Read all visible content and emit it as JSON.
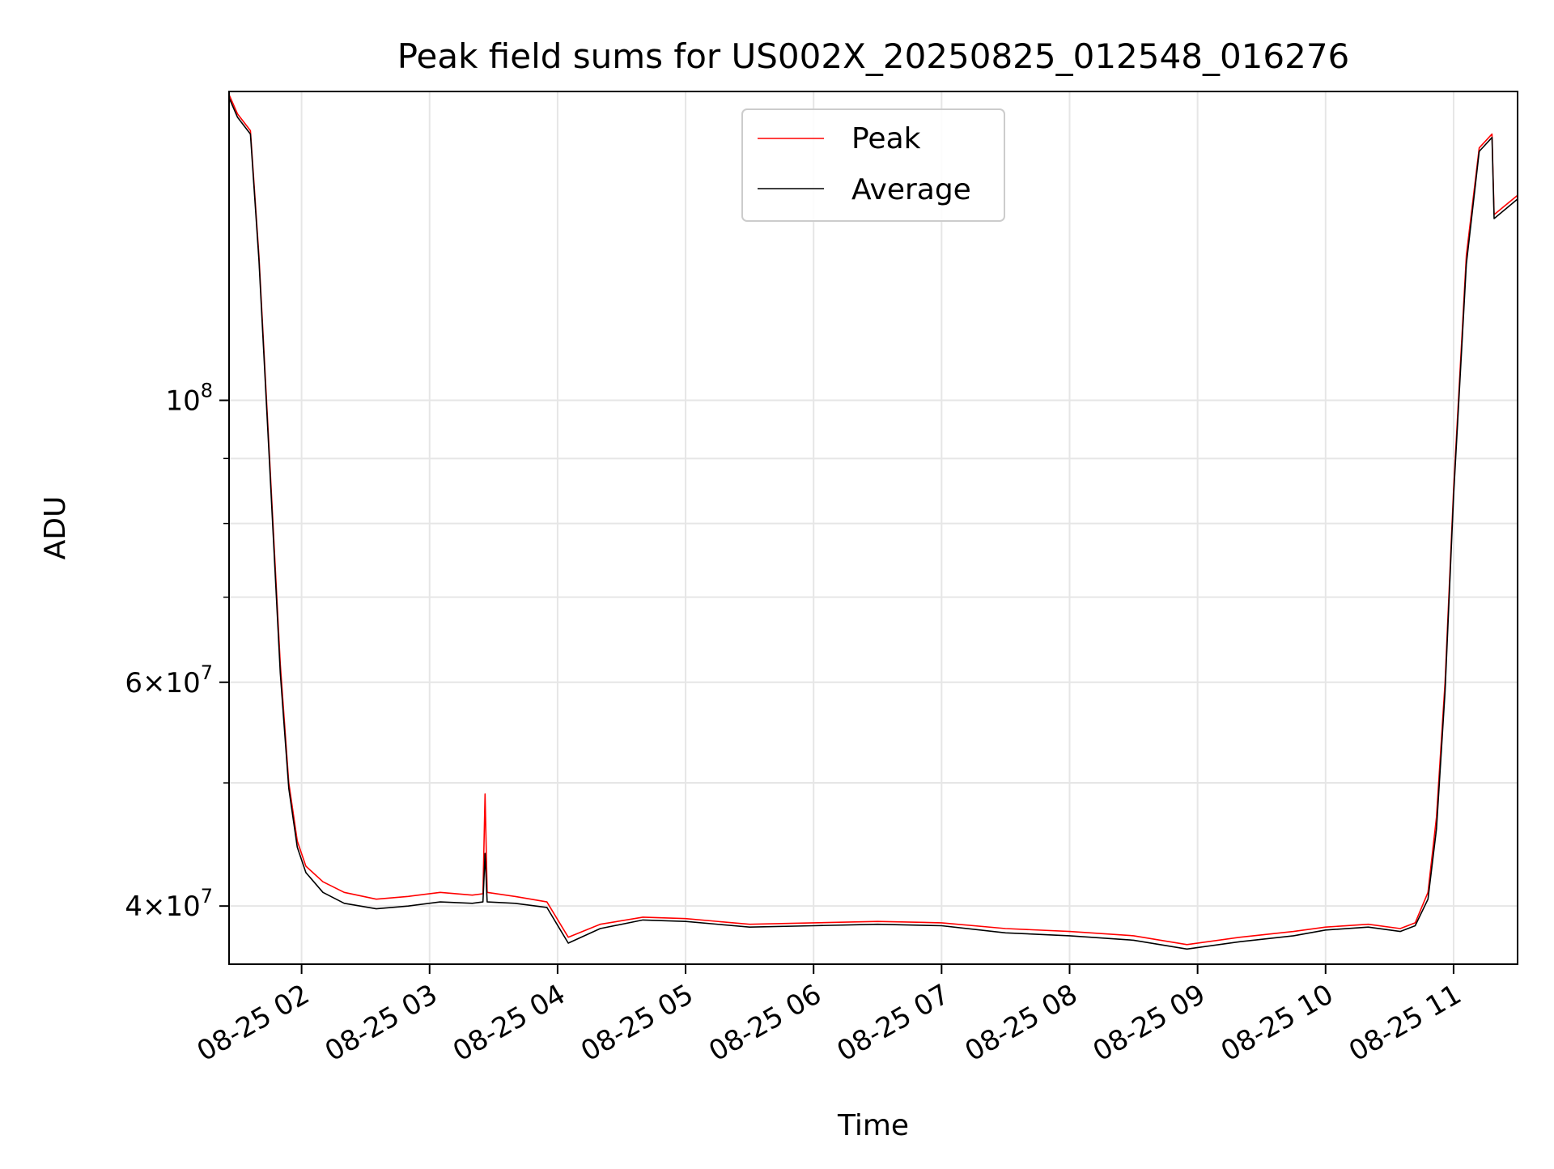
{
  "chart_data": {
    "type": "line",
    "title": "Peak field sums for US002X_20250825_012548_016276",
    "xlabel": "Time",
    "ylabel": "ADU",
    "yscale": "log",
    "xlim": [
      "2025-08-25 01:26",
      "2025-08-25 11:30"
    ],
    "ylim": [
      36000000,
      175000000
    ],
    "grid": true,
    "legend": "upper center",
    "x_ticks": [
      "08-25 02",
      "08-25 03",
      "08-25 04",
      "08-25 05",
      "08-25 06",
      "08-25 07",
      "08-25 08",
      "08-25 09",
      "08-25 10",
      "08-25 11"
    ],
    "y_ticks": [
      {
        "value": 100000000,
        "label": "10^8"
      },
      {
        "value": 60000000,
        "label": "6×10^7"
      },
      {
        "value": 40000000,
        "label": "4×10^7"
      }
    ],
    "colors": {
      "Peak": "#ff0000",
      "Average": "#000000",
      "grid": "#e6e6e6"
    },
    "series": [
      {
        "name": "Peak",
        "x": [
          "2025-08-25 01:26",
          "2025-08-25 01:30",
          "2025-08-25 01:36",
          "2025-08-25 01:40",
          "2025-08-25 01:45",
          "2025-08-25 01:50",
          "2025-08-25 01:54",
          "2025-08-25 01:58",
          "2025-08-25 02:02",
          "2025-08-25 02:10",
          "2025-08-25 02:20",
          "2025-08-25 02:35",
          "2025-08-25 02:50",
          "2025-08-25 03:05",
          "2025-08-25 03:20",
          "2025-08-25 03:25",
          "2025-08-25 03:26",
          "2025-08-25 03:27",
          "2025-08-25 03:40",
          "2025-08-25 03:55",
          "2025-08-25 04:05",
          "2025-08-25 04:20",
          "2025-08-25 04:40",
          "2025-08-25 05:00",
          "2025-08-25 05:30",
          "2025-08-25 06:00",
          "2025-08-25 06:30",
          "2025-08-25 07:00",
          "2025-08-25 07:30",
          "2025-08-25 08:00",
          "2025-08-25 08:30",
          "2025-08-25 08:55",
          "2025-08-25 09:20",
          "2025-08-25 09:45",
          "2025-08-25 10:00",
          "2025-08-25 10:20",
          "2025-08-25 10:35",
          "2025-08-25 10:42",
          "2025-08-25 10:48",
          "2025-08-25 10:52",
          "2025-08-25 10:56",
          "2025-08-25 11:00",
          "2025-08-25 11:06",
          "2025-08-25 11:12",
          "2025-08-25 11:18",
          "2025-08-25 11:19",
          "2025-08-25 11:30"
        ],
        "values": [
          174000000,
          168000000,
          163000000,
          130000000,
          90000000,
          62000000,
          50000000,
          45000000,
          43000000,
          41800000,
          41000000,
          40500000,
          40700000,
          41000000,
          40800000,
          40900000,
          49000000,
          41000000,
          40700000,
          40300000,
          37800000,
          38700000,
          39200000,
          39100000,
          38700000,
          38800000,
          38900000,
          38800000,
          38400000,
          38200000,
          37900000,
          37300000,
          37800000,
          38200000,
          38500000,
          38700000,
          38400000,
          38800000,
          41000000,
          47000000,
          60000000,
          85000000,
          130000000,
          158000000,
          162000000,
          140000000,
          145000000
        ]
      },
      {
        "name": "Average",
        "x": [
          "2025-08-25 01:26",
          "2025-08-25 01:30",
          "2025-08-25 01:36",
          "2025-08-25 01:40",
          "2025-08-25 01:45",
          "2025-08-25 01:50",
          "2025-08-25 01:54",
          "2025-08-25 01:58",
          "2025-08-25 02:02",
          "2025-08-25 02:10",
          "2025-08-25 02:20",
          "2025-08-25 02:35",
          "2025-08-25 02:50",
          "2025-08-25 03:05",
          "2025-08-25 03:20",
          "2025-08-25 03:25",
          "2025-08-25 03:26",
          "2025-08-25 03:27",
          "2025-08-25 03:40",
          "2025-08-25 03:55",
          "2025-08-25 04:05",
          "2025-08-25 04:20",
          "2025-08-25 04:40",
          "2025-08-25 05:00",
          "2025-08-25 05:30",
          "2025-08-25 06:00",
          "2025-08-25 06:30",
          "2025-08-25 07:00",
          "2025-08-25 07:30",
          "2025-08-25 08:00",
          "2025-08-25 08:30",
          "2025-08-25 08:55",
          "2025-08-25 09:20",
          "2025-08-25 09:45",
          "2025-08-25 10:00",
          "2025-08-25 10:20",
          "2025-08-25 10:35",
          "2025-08-25 10:42",
          "2025-08-25 10:48",
          "2025-08-25 10:52",
          "2025-08-25 10:56",
          "2025-08-25 11:00",
          "2025-08-25 11:06",
          "2025-08-25 11:12",
          "2025-08-25 11:18",
          "2025-08-25 11:19",
          "2025-08-25 11:30"
        ],
        "values": [
          173000000,
          167000000,
          162000000,
          129000000,
          89000000,
          61000000,
          49500000,
          44500000,
          42500000,
          41000000,
          40200000,
          39800000,
          40000000,
          40300000,
          40200000,
          40300000,
          44000000,
          40300000,
          40200000,
          39900000,
          37400000,
          38400000,
          39000000,
          38900000,
          38500000,
          38600000,
          38700000,
          38600000,
          38100000,
          37900000,
          37600000,
          37000000,
          37500000,
          37900000,
          38300000,
          38500000,
          38200000,
          38600000,
          40500000,
          46000000,
          59000000,
          84000000,
          128000000,
          157000000,
          161000000,
          139000000,
          144000000
        ]
      }
    ]
  }
}
